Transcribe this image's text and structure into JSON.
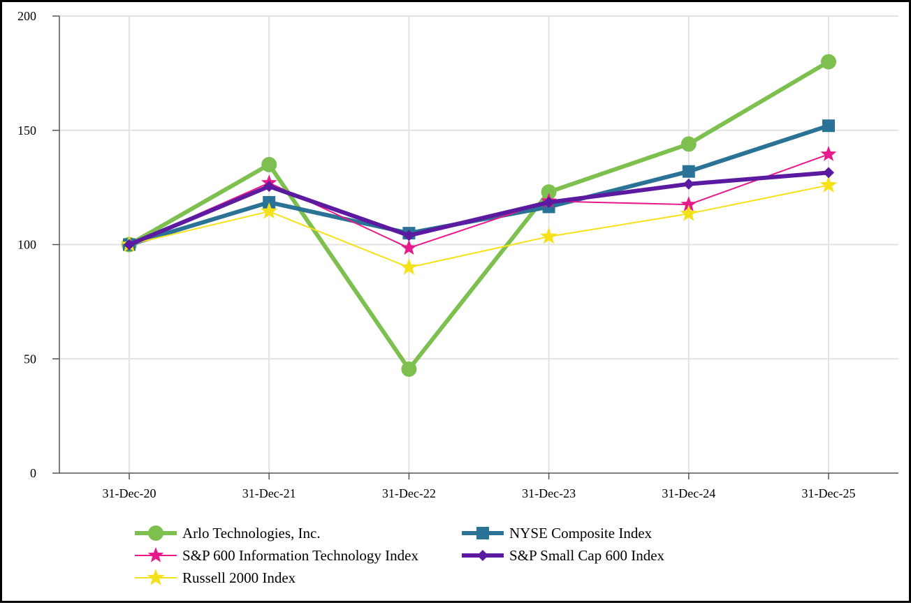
{
  "chart_data": {
    "type": "line",
    "title": "",
    "xlabel": "",
    "ylabel": "",
    "categories": [
      "31-Dec-20",
      "31-Dec-21",
      "31-Dec-22",
      "31-Dec-23",
      "31-Dec-24",
      "31-Dec-25"
    ],
    "ylim": [
      0,
      200
    ],
    "yticks": [
      0,
      50,
      100,
      150,
      200
    ],
    "grid": true,
    "legend_position": "bottom",
    "series": [
      {
        "name": "Arlo Technologies, Inc.",
        "values": [
          100,
          135,
          45.5,
          123,
          144,
          180
        ],
        "color": "#7dc04f",
        "marker": "circle"
      },
      {
        "name": "NYSE Composite Index",
        "values": [
          100,
          118.5,
          105,
          116.5,
          132,
          152
        ],
        "color": "#2a7396",
        "marker": "square"
      },
      {
        "name": "S&P 600 Information Technology Index",
        "values": [
          100,
          127,
          98.5,
          119,
          117.5,
          139.5
        ],
        "color": "#e8198b",
        "marker": "star"
      },
      {
        "name": "S&P Small Cap 600 Index",
        "values": [
          100,
          125.5,
          104,
          118.5,
          126.5,
          131.5
        ],
        "color": "#5b1aa0",
        "marker": "diamond"
      },
      {
        "name": "Russell 2000 Index",
        "values": [
          100,
          114.5,
          90,
          103.5,
          113.5,
          126
        ],
        "color": "#f5e11a",
        "marker": "star"
      }
    ]
  }
}
